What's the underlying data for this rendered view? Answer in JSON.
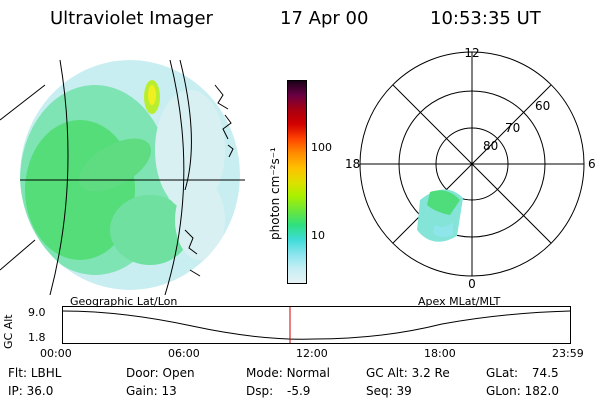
{
  "header": {
    "instrument": "Ultraviolet Imager",
    "date": "17 Apr 00",
    "time": "10:53:35 UT"
  },
  "colorbar": {
    "unit_label": "photon cm⁻²s⁻¹",
    "ticks": [
      "100",
      "10"
    ],
    "colors": [
      "#1a0018",
      "#6a0044",
      "#a80010",
      "#d20000",
      "#ff4400",
      "#ff8c00",
      "#ffbf00",
      "#e0e000",
      "#a8f000",
      "#6be63c",
      "#2ee080",
      "#3fdcd8",
      "#8ae4ee",
      "#c6eef4",
      "#e6f2f4"
    ]
  },
  "polar_plot": {
    "mlt_labels": {
      "top": "12",
      "left": "18",
      "right": "6",
      "bottom": "0"
    },
    "lat_labels": [
      "60",
      "70",
      "80"
    ]
  },
  "timeline": {
    "left_title": "Geographic Lat/Lon",
    "right_title": "Apex MLat/MLT",
    "axis_title": "GC Alt",
    "y_ticks": [
      "9.0",
      "1.8"
    ],
    "x_ticks": [
      "00:00",
      "06:00",
      "12:00",
      "18:00",
      "23:59"
    ]
  },
  "status": {
    "row1": [
      {
        "key": "Flt:",
        "val": "LBHL"
      },
      {
        "key": "Door:",
        "val": "Open"
      },
      {
        "key": "Mode:",
        "val": "Normal"
      },
      {
        "key": "GC Alt:",
        "val": "3.2 Re"
      },
      {
        "key": "GLat:",
        "val": "74.5"
      }
    ],
    "row2": [
      {
        "key": "IP:",
        "val": "36.0"
      },
      {
        "key": "Gain:",
        "val": "13"
      },
      {
        "key": "Dsp:",
        "val": "-5.9"
      },
      {
        "key": "Seq:",
        "val": "39"
      },
      {
        "key": "GLon:",
        "val": "182.0"
      }
    ]
  }
}
